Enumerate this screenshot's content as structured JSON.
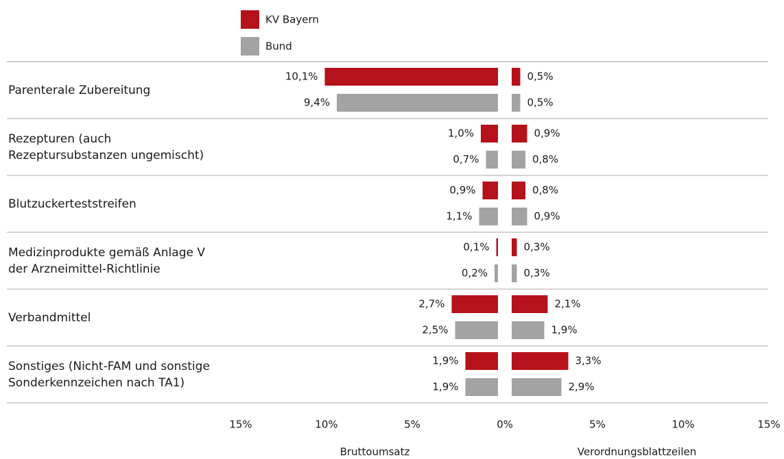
{
  "categories": [
    "Parenterale Zubereitung",
    "Rezepturen (auch\nRezeptursubstanzen ungemischt)",
    "Blutzuckerteststreifen",
    "Medizinprodukte gemäß Anlage V\nder Arzneimittel-Richtlinie",
    "Verbandmittel",
    "Sonstiges (Nicht-FAM und sonstige\nSonderkennzeichen nach TA1)"
  ],
  "chart_data": [
    {
      "type": "bar",
      "orientation": "horizontal",
      "xlabel": "Bruttoumsatz",
      "xlim": [
        15,
        0
      ],
      "xticks": [
        {
          "value": 15,
          "label": "15%"
        },
        {
          "value": 10,
          "label": "10%"
        },
        {
          "value": 5,
          "label": "5%"
        }
      ],
      "series": [
        {
          "name": "KV Bayern",
          "color": "#b5121b",
          "values": [
            10.1,
            1.0,
            0.9,
            0.1,
            2.7,
            1.9
          ],
          "value_labels": [
            "10,1%",
            "1,0%",
            "0,9%",
            "0,1%",
            "2,7%",
            "1,9%"
          ]
        },
        {
          "name": "Bund",
          "color": "#a3a3a3",
          "values": [
            9.4,
            0.7,
            1.1,
            0.2,
            2.5,
            1.9
          ],
          "value_labels": [
            "9,4%",
            "0,7%",
            "1,1%",
            "0,2%",
            "2,5%",
            "1,9%"
          ]
        }
      ]
    },
    {
      "type": "bar",
      "orientation": "horizontal",
      "xlabel": "Verordnungsblattzeilen",
      "xlim": [
        0,
        15
      ],
      "xticks": [
        {
          "value": 0,
          "label": "0%"
        },
        {
          "value": 5,
          "label": "5%"
        },
        {
          "value": 10,
          "label": "10%"
        },
        {
          "value": 15,
          "label": "15%"
        }
      ],
      "series": [
        {
          "color": "#b5121b",
          "values": [
            0.5,
            0.9,
            0.8,
            0.3,
            2.1,
            3.3
          ],
          "value_labels": [
            "0,5%",
            "0,9%",
            "0,8%",
            "0,3%",
            "2,1%",
            "3,3%"
          ]
        },
        {
          "color": "#a3a3a3",
          "values": [
            0.5,
            0.8,
            0.9,
            0.3,
            1.9,
            2.9
          ],
          "value_labels": [
            "0,5%",
            "0,8%",
            "0,9%",
            "0,3%",
            "1,9%",
            "2,9%"
          ]
        }
      ]
    }
  ]
}
